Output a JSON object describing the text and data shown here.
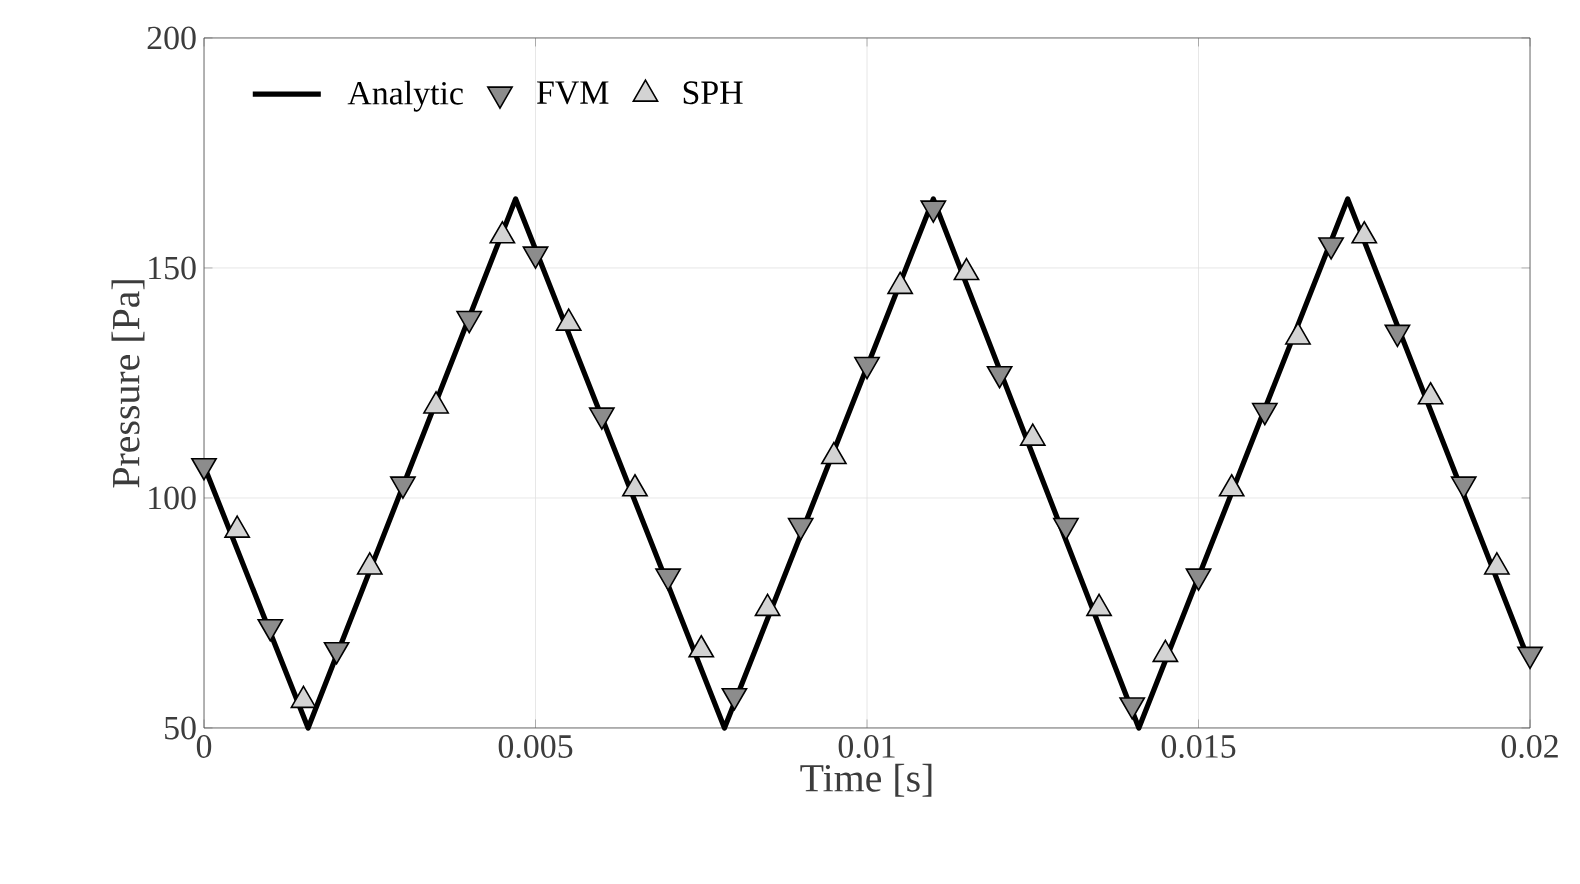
{
  "chart_data": {
    "type": "line",
    "xlabel": "Time [s]",
    "ylabel": "Pressure [Pa]",
    "xlim": [
      0,
      0.02
    ],
    "ylim": [
      50,
      200
    ],
    "xticks": [
      0,
      0.005,
      0.01,
      0.015,
      0.02
    ],
    "yticks": [
      50,
      100,
      150,
      200
    ],
    "grid": true,
    "legend": "top left",
    "series": [
      {
        "name": "Analytic",
        "color": "#000000",
        "marker": "none",
        "line_style": "solid",
        "x": [
          0,
          0.00157,
          0.0047,
          0.00785,
          0.011,
          0.0141,
          0.01725,
          0.02
        ],
        "values": [
          107,
          50,
          165,
          50,
          165,
          50,
          165,
          64
        ]
      },
      {
        "name": "FVM",
        "type": "scatter",
        "color": "#8c8c8c",
        "marker": "triangle_down",
        "x": [
          0,
          0.001,
          0.002,
          0.003,
          0.004,
          0.005,
          0.006,
          0.007,
          0.008,
          0.009,
          0.01,
          0.011,
          0.012,
          0.013,
          0.014,
          0.015,
          0.016,
          0.017,
          0.018,
          0.019,
          0.02
        ],
        "values": [
          107,
          72,
          67,
          103,
          139,
          153,
          118,
          83,
          57,
          94,
          129,
          163,
          127,
          94,
          55,
          83,
          119,
          155,
          136,
          103,
          66
        ]
      },
      {
        "name": "SPH",
        "type": "scatter",
        "color": "#d3d3d3",
        "marker": "triangle",
        "x": [
          0.0005,
          0.0015,
          0.0025,
          0.0035,
          0.0045,
          0.0055,
          0.0065,
          0.0075,
          0.0085,
          0.0095,
          0.0105,
          0.0115,
          0.0125,
          0.0135,
          0.0145,
          0.0155,
          0.0165,
          0.0175,
          0.0185,
          0.0195
        ],
        "values": [
          93,
          56,
          85,
          120,
          157,
          138,
          102,
          67,
          76,
          109,
          146,
          149,
          113,
          76,
          66,
          102,
          135,
          157,
          122,
          85
        ]
      }
    ]
  }
}
